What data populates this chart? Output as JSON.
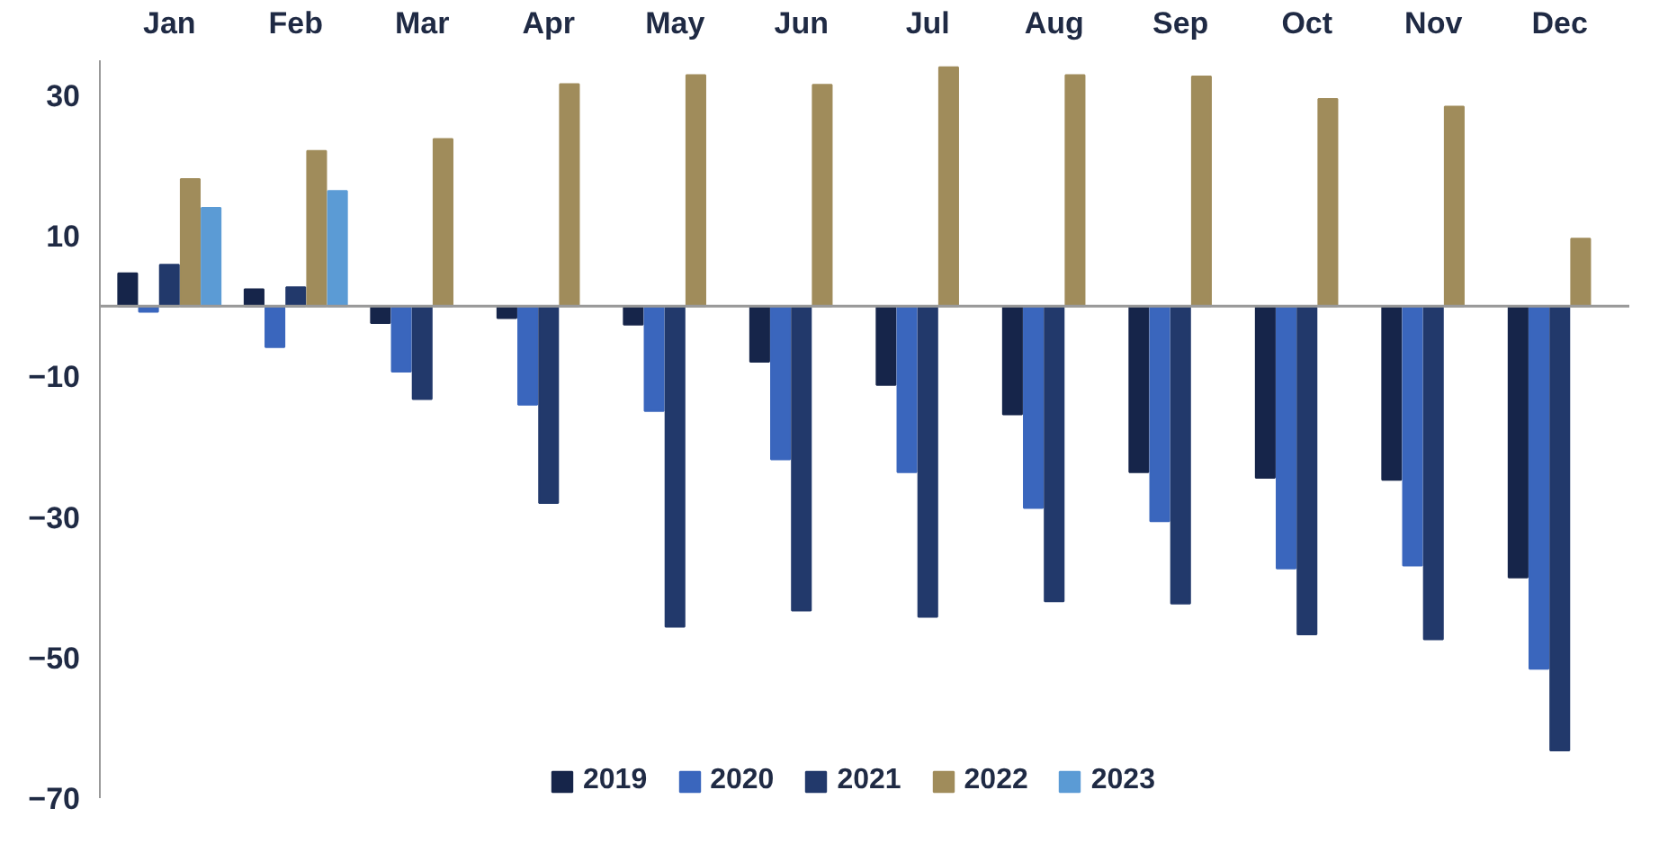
{
  "chart_data": {
    "type": "bar",
    "categories": [
      "Jan",
      "Feb",
      "Mar",
      "Apr",
      "May",
      "Jun",
      "Jul",
      "Aug",
      "Sep",
      "Oct",
      "Nov",
      "Dec"
    ],
    "series": [
      {
        "name": "2019",
        "color": "#16254a",
        "values": [
          4.7,
          2.4,
          -2.4,
          -1.7,
          -2.6,
          -7.9,
          -11.2,
          -15.4,
          -23.6,
          -24.4,
          -24.7,
          -38.6
        ]
      },
      {
        "name": "2020",
        "color": "#3a66bd",
        "values": [
          -0.8,
          -5.8,
          -9.3,
          -14.0,
          -14.9,
          -21.8,
          -23.6,
          -28.7,
          -30.6,
          -37.3,
          -36.9,
          -51.6
        ]
      },
      {
        "name": "2021",
        "color": "#22396b",
        "values": [
          5.9,
          2.7,
          -13.2,
          -28.0,
          -45.6,
          -43.3,
          -44.2,
          -42.0,
          -42.3,
          -46.7,
          -47.4,
          -63.2
        ]
      },
      {
        "name": "2022",
        "color": "#a08c5b",
        "values": [
          18.1,
          22.1,
          23.8,
          31.6,
          32.9,
          31.5,
          34.0,
          32.9,
          32.7,
          29.5,
          28.4,
          9.6
        ]
      },
      {
        "name": "2023",
        "color": "#5b9bd5",
        "values": [
          14.0,
          16.4,
          null,
          null,
          null,
          null,
          null,
          null,
          null,
          null,
          null,
          null
        ]
      }
    ],
    "ylim": [
      -70,
      35
    ],
    "yticks": [
      30,
      10,
      -10,
      -30,
      -50,
      -70
    ],
    "grid": false,
    "legend": "bottom"
  }
}
